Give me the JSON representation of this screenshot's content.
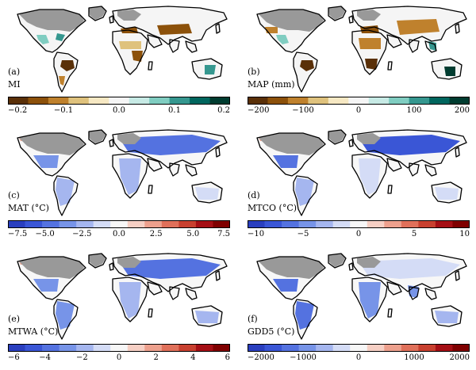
{
  "panels": [
    {
      "label": "(a)",
      "variable": "MI",
      "tick_labels": [
        "−0.2",
        "−0.1",
        "0.0",
        "0.1",
        "0.2"
      ],
      "colormap": [
        "#5a3008",
        "#8c510a",
        "#bf812d",
        "#dfc27d",
        "#f6e8c3",
        "#f5f5f5",
        "#c7eae5",
        "#80cdc1",
        "#35978f",
        "#01665e",
        "#003c30"
      ]
    },
    {
      "label": "(b)",
      "variable": "MAP (mm)",
      "tick_labels": [
        "−200",
        "−100",
        "0",
        "100",
        "200"
      ],
      "colormap": [
        "#5a3008",
        "#8c510a",
        "#bf812d",
        "#dfc27d",
        "#f6e8c3",
        "#f5f5f5",
        "#c7eae5",
        "#80cdc1",
        "#35978f",
        "#01665e",
        "#003c30"
      ]
    },
    {
      "label": "(c)",
      "variable": "MAT (°C)",
      "tick_labels": [
        "−7.5",
        "−5.0",
        "−2.5",
        "0.0",
        "2.5",
        "5.0",
        "7.5"
      ],
      "colormap": [
        "#2a3fbf",
        "#3a56d6",
        "#5472e0",
        "#7794e8",
        "#a5b6ef",
        "#d4dcf6",
        "#f7f7f7",
        "#f6cfc4",
        "#eda08d",
        "#e0705a",
        "#c8402f",
        "#a50f15",
        "#7f0000"
      ]
    },
    {
      "label": "(d)",
      "variable": "MTCO (°C)",
      "tick_labels": [
        "−10",
        "−5",
        "0",
        "5",
        "10"
      ],
      "colormap": [
        "#2a3fbf",
        "#3a56d6",
        "#5472e0",
        "#7794e8",
        "#a5b6ef",
        "#d4dcf6",
        "#f7f7f7",
        "#f6cfc4",
        "#eda08d",
        "#e0705a",
        "#c8402f",
        "#a50f15",
        "#7f0000"
      ]
    },
    {
      "label": "(e)",
      "variable": "MTWA (°C)",
      "tick_labels": [
        "−6",
        "−4",
        "−2",
        "0",
        "2",
        "4",
        "6"
      ],
      "colormap": [
        "#2a3fbf",
        "#3a56d6",
        "#5472e0",
        "#7794e8",
        "#a5b6ef",
        "#d4dcf6",
        "#f7f7f7",
        "#f6cfc4",
        "#eda08d",
        "#e0705a",
        "#c8402f",
        "#a50f15",
        "#7f0000"
      ]
    },
    {
      "label": "(f)",
      "variable": "GDD5 (°C)",
      "tick_labels": [
        "−2000",
        "−1000",
        "0",
        "1000",
        "2000"
      ],
      "colormap": [
        "#2a3fbf",
        "#3a56d6",
        "#5472e0",
        "#7794e8",
        "#a5b6ef",
        "#d4dcf6",
        "#f7f7f7",
        "#f6cfc4",
        "#eda08d",
        "#e0705a",
        "#c8402f",
        "#a50f15",
        "#7f0000"
      ]
    }
  ],
  "ice_sheet_color": "#999999"
}
